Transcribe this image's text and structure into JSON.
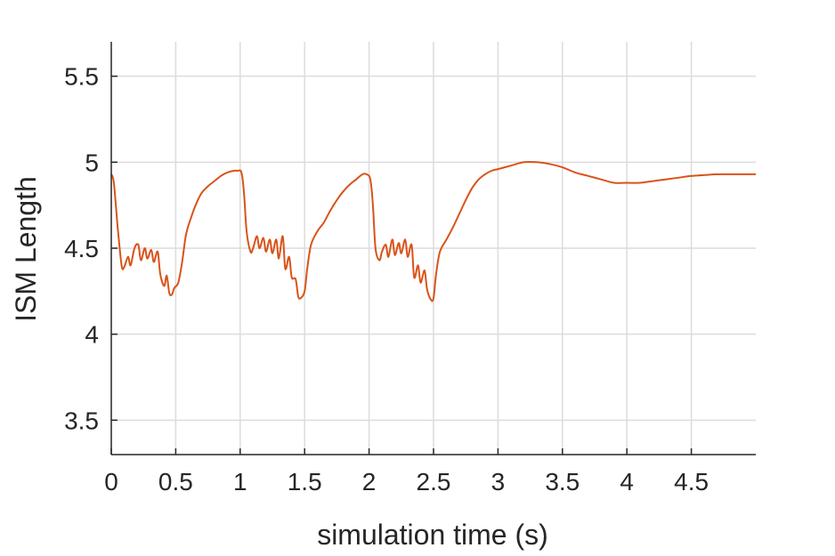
{
  "chart_data": {
    "type": "line",
    "title": "",
    "xlabel": "simulation time (s)",
    "ylabel": "ISM Length",
    "xlim": [
      0,
      5
    ],
    "ylim": [
      3.3,
      5.7
    ],
    "x_ticks": [
      0,
      0.5,
      1,
      1.5,
      2,
      2.5,
      3,
      3.5,
      4,
      4.5
    ],
    "x_tick_labels": [
      "0",
      "0.5",
      "1",
      "1.5",
      "2",
      "2.5",
      "3",
      "3.5",
      "4",
      "4.5"
    ],
    "y_ticks": [
      3.5,
      4,
      4.5,
      5,
      5.5
    ],
    "y_tick_labels": [
      "3.5",
      "4",
      "4.5",
      "5",
      "5.5"
    ],
    "grid": true,
    "series": [
      {
        "color": "#D95319",
        "x": [
          0,
          0.02,
          0.05,
          0.08,
          0.1,
          0.13,
          0.15,
          0.18,
          0.21,
          0.23,
          0.26,
          0.28,
          0.31,
          0.33,
          0.36,
          0.38,
          0.41,
          0.43,
          0.45,
          0.47,
          0.49,
          0.52,
          0.55,
          0.58,
          0.62,
          0.66,
          0.7,
          0.75,
          0.8,
          0.85,
          0.9,
          0.95,
          0.98,
          1.01,
          1.03,
          1.05,
          1.08,
          1.1,
          1.13,
          1.15,
          1.18,
          1.2,
          1.23,
          1.25,
          1.28,
          1.3,
          1.33,
          1.35,
          1.38,
          1.4,
          1.43,
          1.45,
          1.47,
          1.5,
          1.52,
          1.55,
          1.6,
          1.65,
          1.7,
          1.75,
          1.8,
          1.85,
          1.9,
          1.95,
          1.98,
          2.01,
          2.03,
          2.05,
          2.08,
          2.1,
          2.13,
          2.15,
          2.18,
          2.2,
          2.23,
          2.25,
          2.28,
          2.3,
          2.33,
          2.35,
          2.38,
          2.4,
          2.43,
          2.45,
          2.48,
          2.5,
          2.52,
          2.55,
          2.6,
          2.65,
          2.7,
          2.75,
          2.8,
          2.85,
          2.9,
          2.95,
          3.0,
          3.1,
          3.2,
          3.3,
          3.4,
          3.5,
          3.6,
          3.7,
          3.8,
          3.9,
          4.0,
          4.1,
          4.2,
          4.3,
          4.4,
          4.5,
          4.6,
          4.7,
          4.8,
          4.9,
          5.0
        ],
        "y": [
          4.93,
          4.88,
          4.62,
          4.4,
          4.39,
          4.45,
          4.4,
          4.5,
          4.52,
          4.43,
          4.5,
          4.44,
          4.49,
          4.42,
          4.48,
          4.35,
          4.28,
          4.34,
          4.24,
          4.23,
          4.27,
          4.3,
          4.42,
          4.58,
          4.68,
          4.76,
          4.82,
          4.86,
          4.89,
          4.92,
          4.94,
          4.95,
          4.95,
          4.94,
          4.82,
          4.6,
          4.48,
          4.5,
          4.57,
          4.5,
          4.56,
          4.48,
          4.55,
          4.47,
          4.55,
          4.44,
          4.57,
          4.38,
          4.45,
          4.33,
          4.32,
          4.22,
          4.21,
          4.25,
          4.38,
          4.52,
          4.6,
          4.65,
          4.72,
          4.78,
          4.83,
          4.87,
          4.9,
          4.93,
          4.93,
          4.9,
          4.75,
          4.5,
          4.43,
          4.48,
          4.52,
          4.45,
          4.55,
          4.46,
          4.53,
          4.47,
          4.55,
          4.45,
          4.52,
          4.33,
          4.4,
          4.3,
          4.37,
          4.26,
          4.2,
          4.21,
          4.35,
          4.48,
          4.55,
          4.62,
          4.7,
          4.78,
          4.85,
          4.9,
          4.93,
          4.95,
          4.96,
          4.98,
          5.0,
          5.0,
          4.99,
          4.97,
          4.94,
          4.92,
          4.9,
          4.88,
          4.88,
          4.88,
          4.89,
          4.9,
          4.91,
          4.92,
          4.925,
          4.93,
          4.93,
          4.93,
          4.93
        ]
      }
    ]
  }
}
